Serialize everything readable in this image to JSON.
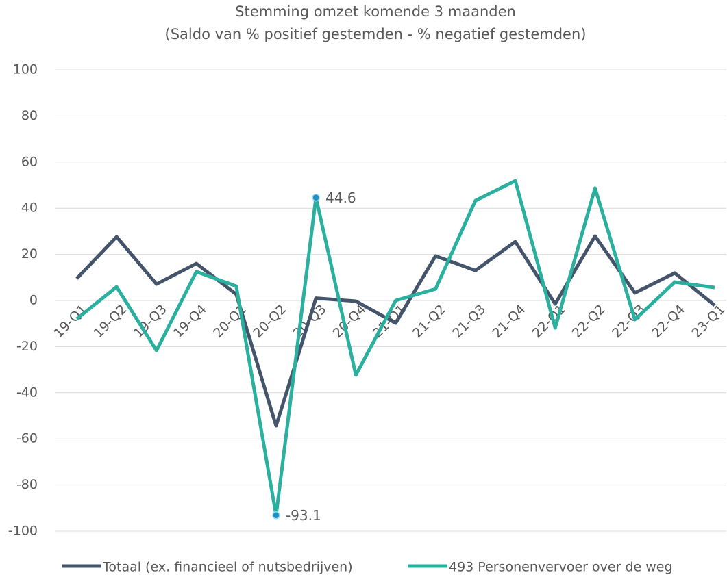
{
  "chart_data": {
    "type": "line",
    "title": "Stemming  omzet komende 3 maanden",
    "subtitle": "(Saldo van % positief gestemden - % negatief gestemden)",
    "categories": [
      "19-Q1",
      "19-Q2",
      "19-Q3",
      "19-Q4",
      "20-Q1",
      "20-Q2",
      "20-Q3",
      "20-Q4",
      "21-Q1",
      "21-Q2",
      "21-Q3",
      "21-Q4",
      "22-Q1",
      "22-Q2",
      "22-Q3",
      "22-Q4",
      "23-Q1"
    ],
    "series": [
      {
        "name": "Totaal (ex. financieel of nutsbedrijven)",
        "color": "#44546a",
        "values": [
          9.5,
          27.6,
          7.1,
          16,
          2.7,
          -54.3,
          1,
          -0.3,
          -9.8,
          19.3,
          13,
          25.5,
          -1.5,
          27.9,
          3.3,
          11.9,
          -2.1
        ]
      },
      {
        "name": "493 Personenvervoer over de weg",
        "color": "#2bb0a0",
        "values": [
          -8,
          5.9,
          -21.7,
          12.5,
          6.2,
          -93.1,
          44.6,
          -32.3,
          0,
          5,
          43.3,
          51.9,
          -11.9,
          48.7,
          -8.3,
          8,
          5.6
        ],
        "labeled": [
          5,
          6
        ],
        "marker_color": "#1a8fc4"
      }
    ],
    "ylim": [
      -100,
      100
    ],
    "yticks": [
      -100,
      -80,
      -60,
      -40,
      -20,
      0,
      20,
      40,
      60,
      80,
      100
    ],
    "grid": true,
    "legend": "bottom"
  }
}
